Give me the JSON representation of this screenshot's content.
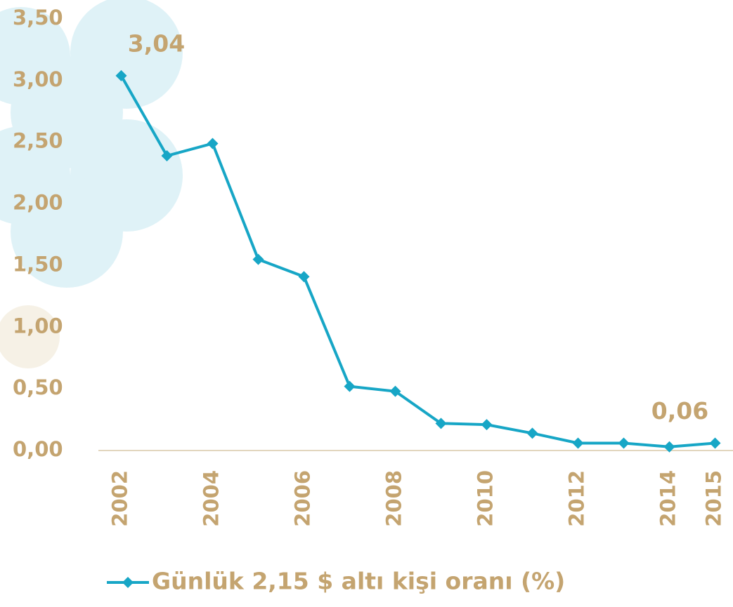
{
  "chart_data": {
    "type": "line",
    "categories": [
      "2002",
      null,
      "2004",
      null,
      "2006",
      null,
      "2008",
      null,
      "2010",
      null,
      "2012",
      null,
      "2014",
      "2015"
    ],
    "series": [
      {
        "name": "Günlük 2,15 $ altı kişi oranı (%)",
        "color": "#17a6c6",
        "values": [
          3.04,
          2.39,
          2.49,
          1.55,
          1.41,
          0.52,
          0.48,
          0.22,
          0.21,
          0.14,
          0.06,
          0.06,
          0.03,
          0.06
        ],
        "value_labels": [
          "3,04",
          null,
          null,
          null,
          null,
          null,
          null,
          null,
          null,
          null,
          null,
          null,
          null,
          "0,06"
        ]
      }
    ],
    "ylim": [
      0,
      3.5
    ],
    "yticks": [
      {
        "value": 0,
        "label": "0,00"
      },
      {
        "value": 0.5,
        "label": "0,50"
      },
      {
        "value": 1,
        "label": "1,00"
      },
      {
        "value": 1.5,
        "label": "1,50"
      },
      {
        "value": 2,
        "label": "2,00"
      },
      {
        "value": 2.5,
        "label": "2,50"
      },
      {
        "value": 3,
        "label": "3,00"
      },
      {
        "value": 3.5,
        "label": "3,50"
      }
    ],
    "legend": "bottom",
    "grid": false
  }
}
